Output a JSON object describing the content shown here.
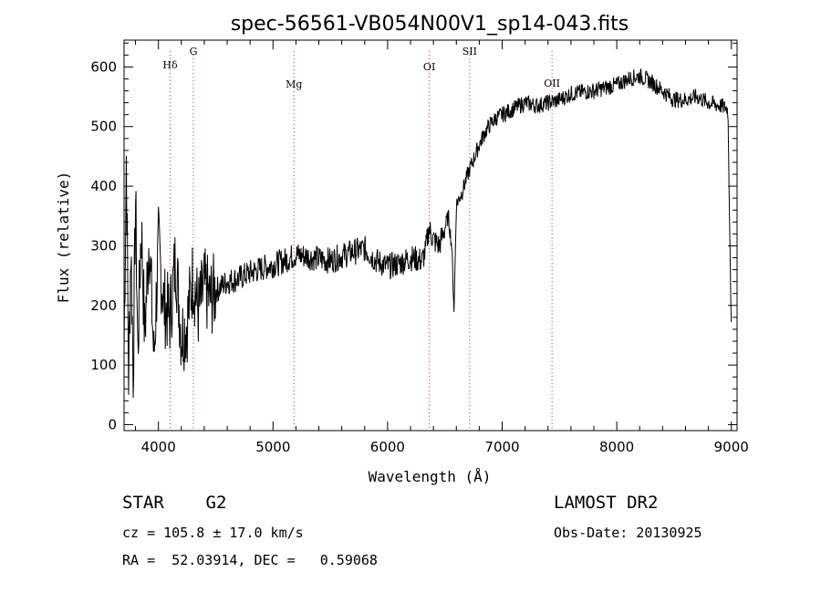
{
  "chart_data": {
    "type": "line",
    "title": "spec-56561-VB054N00V1_sp14-043.fits",
    "xlabel": "Wavelength (Å)",
    "ylabel": "Flux (relative)",
    "xlim": [
      3700,
      9050
    ],
    "ylim": [
      -10,
      645
    ],
    "xticks": [
      4000,
      5000,
      6000,
      7000,
      8000,
      9000
    ],
    "yticks": [
      0,
      100,
      200,
      300,
      400,
      500,
      600
    ],
    "grid": false,
    "legend": "none",
    "line_color": "#000000",
    "marker_color": "#cc3333",
    "series": [
      {
        "x": [
          3700,
          3720,
          3740,
          3760,
          3780,
          3800,
          3820,
          3850,
          3880,
          3920,
          3960,
          4000,
          4050,
          4100,
          4150,
          4200,
          4250,
          4300,
          4350,
          4400,
          4450,
          4500,
          4600,
          4700,
          4800,
          4900,
          5000,
          5100,
          5200,
          5300,
          5400,
          5500,
          5600,
          5700,
          5800,
          5900,
          6000,
          6100,
          6200,
          6300,
          6330,
          6360,
          6400,
          6450,
          6500,
          6530,
          6560,
          6580,
          6600,
          6650,
          6700,
          6750,
          6800,
          6850,
          6900,
          6950,
          7000,
          7100,
          7200,
          7300,
          7400,
          7500,
          7600,
          7700,
          7800,
          7900,
          8000,
          8100,
          8200,
          8300,
          8400,
          8500,
          8600,
          8700,
          8800,
          8900,
          8970,
          9000
        ],
        "y": [
          130,
          450,
          80,
          300,
          90,
          380,
          120,
          340,
          150,
          320,
          110,
          300,
          200,
          180,
          280,
          150,
          170,
          250,
          190,
          230,
          210,
          225,
          240,
          245,
          255,
          262,
          268,
          275,
          285,
          282,
          278,
          275,
          283,
          290,
          295,
          275,
          265,
          270,
          280,
          275,
          290,
          330,
          310,
          300,
          330,
          350,
          300,
          195,
          370,
          390,
          420,
          445,
          470,
          490,
          505,
          515,
          520,
          530,
          540,
          535,
          540,
          545,
          555,
          558,
          560,
          565,
          570,
          580,
          585,
          575,
          560,
          545,
          545,
          550,
          540,
          535,
          530,
          160
        ]
      }
    ],
    "lines": [
      {
        "label": "Hδ",
        "x": 4102
      },
      {
        "label": "G",
        "x": 4305
      },
      {
        "label": "Mg",
        "x": 5183
      },
      {
        "label": "OI",
        "x": 6364
      },
      {
        "label": "SII",
        "x": 6716
      },
      {
        "label": "OII",
        "x": 7435
      }
    ]
  },
  "footer": {
    "class_line": "STAR    G2",
    "survey": "LAMOST DR2",
    "cz_line": "cz = 105.8 ± 17.0 km/s",
    "obs_date": "Obs-Date: 20130925",
    "radec_line": "RA =  52.03914, DEC =   0.59068"
  }
}
